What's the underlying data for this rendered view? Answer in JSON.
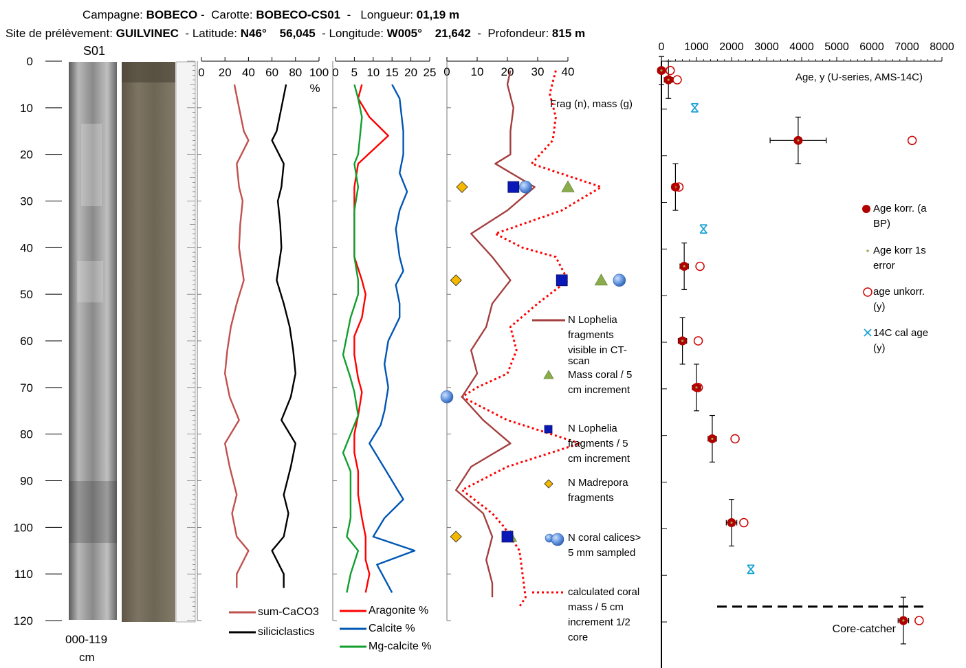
{
  "header": {
    "campagne_label": "Campagne:",
    "campagne": "BOBECO",
    "carotte_label": "Carotte:",
    "carotte": "BOBECO-CS01",
    "longueur_label": "Longueur:",
    "longueur": "01,19 m",
    "site_label": "Site de prélèvement:",
    "site": "GUILVINEC",
    "latitude_label": "Latitude:",
    "latitude_a": "N46°",
    "latitude_b": "56,045",
    "longitude_label": "Longitude:",
    "longitude_a": "W005°",
    "longitude_b": "21,642",
    "profondeur_label": "Profondeur:",
    "profondeur": "815 m"
  },
  "core": {
    "section_label": "S01",
    "range_label": "000-119",
    "range_unit": "cm"
  },
  "colors": {
    "sum_caco3": "#c0504d",
    "siliciclastics": "#000000",
    "aragonite": "#ff0000",
    "calcite": "#0056b3",
    "mg_calcite": "#119e2e",
    "lophelia_ct": "#a43f3f",
    "calc_mass": "#ff0000",
    "mass_coral": "#8aac4c",
    "n_lophelia": "#0a18b8",
    "madrepora": "#f5b800",
    "calices": "#4e86d8",
    "age_korr": "#b00000",
    "c14": "#1ba3d4"
  },
  "chart_data": [
    {
      "type": "line",
      "panel": "percent",
      "ylabel": "",
      "ylim": [
        0,
        120
      ],
      "yticks": [
        "0",
        "10",
        "20",
        "30",
        "40",
        "50",
        "60",
        "70",
        "80",
        "90",
        "100",
        "110",
        "120"
      ],
      "xlim": [
        0,
        100
      ],
      "xticks": [
        "0",
        "20",
        "40",
        "60",
        "80",
        "100"
      ],
      "xunit": "%",
      "series": [
        {
          "name": "sum-CaCO3",
          "points": [
            [
              28,
              5
            ],
            [
              32,
              10
            ],
            [
              36,
              15
            ],
            [
              40,
              17
            ],
            [
              30,
              22
            ],
            [
              32,
              27
            ],
            [
              35,
              30
            ],
            [
              33,
              35
            ],
            [
              32,
              40
            ],
            [
              36,
              47
            ],
            [
              30,
              52
            ],
            [
              25,
              57
            ],
            [
              22,
              62
            ],
            [
              20,
              67
            ],
            [
              24,
              72
            ],
            [
              32,
              77
            ],
            [
              20,
              82
            ],
            [
              24,
              87
            ],
            [
              30,
              93
            ],
            [
              26,
              97
            ],
            [
              30,
              102
            ],
            [
              40,
              105
            ],
            [
              30,
              110
            ],
            [
              30,
              113
            ]
          ]
        },
        {
          "name": "siliciclastics",
          "points": [
            [
              72,
              5
            ],
            [
              68,
              10
            ],
            [
              64,
              15
            ],
            [
              60,
              17
            ],
            [
              70,
              22
            ],
            [
              68,
              27
            ],
            [
              65,
              30
            ],
            [
              67,
              35
            ],
            [
              68,
              40
            ],
            [
              64,
              47
            ],
            [
              70,
              52
            ],
            [
              75,
              57
            ],
            [
              78,
              62
            ],
            [
              80,
              67
            ],
            [
              76,
              72
            ],
            [
              68,
              77
            ],
            [
              80,
              82
            ],
            [
              76,
              87
            ],
            [
              70,
              93
            ],
            [
              74,
              97
            ],
            [
              70,
              102
            ],
            [
              60,
              105
            ],
            [
              70,
              110
            ],
            [
              70,
              113
            ]
          ]
        }
      ]
    },
    {
      "type": "line",
      "panel": "mineralogy",
      "xlim": [
        0,
        25
      ],
      "xticks": [
        "0",
        "5",
        "10",
        "15",
        "20",
        "25"
      ],
      "series": [
        {
          "name": "Aragonite %",
          "points": [
            [
              7,
              5
            ],
            [
              6,
              8
            ],
            [
              9,
              12
            ],
            [
              14,
              16
            ],
            [
              6,
              22
            ],
            [
              5,
              27
            ],
            [
              5,
              32
            ],
            [
              5,
              37
            ],
            [
              5,
              42
            ],
            [
              7,
              47
            ],
            [
              8,
              50
            ],
            [
              7,
              55
            ],
            [
              5,
              59
            ],
            [
              5,
              63
            ],
            [
              6,
              68
            ],
            [
              7,
              71
            ],
            [
              6,
              76
            ],
            [
              5,
              80
            ],
            [
              5,
              84
            ],
            [
              6,
              88
            ],
            [
              6,
              93
            ],
            [
              7,
              98
            ],
            [
              8,
              102
            ],
            [
              8,
              107
            ],
            [
              9,
              110
            ],
            [
              8,
              114
            ]
          ]
        },
        {
          "name": "Calcite %",
          "points": [
            [
              15,
              5
            ],
            [
              17,
              8
            ],
            [
              18,
              15
            ],
            [
              18,
              20
            ],
            [
              17,
              24
            ],
            [
              19,
              28
            ],
            [
              17,
              32
            ],
            [
              16,
              36
            ],
            [
              17,
              42
            ],
            [
              18,
              45
            ],
            [
              16,
              48
            ],
            [
              17,
              52
            ],
            [
              17,
              55
            ],
            [
              14,
              60
            ],
            [
              13,
              65
            ],
            [
              14,
              70
            ],
            [
              13,
              75
            ],
            [
              12,
              78
            ],
            [
              9,
              82
            ],
            [
              12,
              86
            ],
            [
              15,
              90
            ],
            [
              18,
              94
            ],
            [
              13,
              98
            ],
            [
              10,
              102
            ],
            [
              21,
              105
            ],
            [
              11,
              108
            ],
            [
              15,
              114
            ]
          ]
        },
        {
          "name": "Mg-calcite %",
          "points": [
            [
              5,
              5
            ],
            [
              6,
              8
            ],
            [
              7,
              12
            ],
            [
              6,
              20
            ],
            [
              5,
              22
            ],
            [
              6,
              27
            ],
            [
              5,
              32
            ],
            [
              5,
              37
            ],
            [
              5,
              42
            ],
            [
              6,
              47
            ],
            [
              6,
              50
            ],
            [
              4,
              55
            ],
            [
              3,
              59
            ],
            [
              2,
              63
            ],
            [
              4,
              68
            ],
            [
              5,
              71
            ],
            [
              6,
              76
            ],
            [
              4,
              80
            ],
            [
              2,
              84
            ],
            [
              4,
              88
            ],
            [
              4,
              93
            ],
            [
              4,
              98
            ],
            [
              3,
              102
            ],
            [
              6,
              105
            ],
            [
              4,
              110
            ],
            [
              3,
              114
            ]
          ]
        }
      ]
    },
    {
      "type": "line",
      "panel": "fragments",
      "xlim": [
        0,
        40
      ],
      "xticks": [
        "0",
        "10",
        "20",
        "30",
        "40"
      ],
      "annotation": "Frag (n), mass (g)",
      "series": [
        {
          "name": "N Lophelia fragments visible in CT-scan",
          "points": [
            [
              21,
              2
            ],
            [
              20,
              5
            ],
            [
              22,
              10
            ],
            [
              21,
              15
            ],
            [
              21,
              20
            ],
            [
              16,
              22
            ],
            [
              29,
              27
            ],
            [
              20,
              32
            ],
            [
              8,
              37
            ],
            [
              15,
              42
            ],
            [
              21,
              47
            ],
            [
              15,
              52
            ],
            [
              13,
              57
            ],
            [
              8,
              62
            ],
            [
              10,
              67
            ],
            [
              5,
              72
            ],
            [
              12,
              77
            ],
            [
              21,
              82
            ],
            [
              8,
              87
            ],
            [
              3,
              92
            ],
            [
              12,
              97
            ],
            [
              15,
              102
            ],
            [
              13,
              107
            ],
            [
              15,
              112
            ],
            [
              15,
              115
            ]
          ]
        },
        {
          "name": "calculated coral mass / 5 cm increment 1/2 core",
          "dashed": true,
          "points": [
            [
              36,
              2
            ],
            [
              34,
              7
            ],
            [
              36,
              12
            ],
            [
              35,
              17
            ],
            [
              28,
              22
            ],
            [
              51,
              27
            ],
            [
              38,
              32
            ],
            [
              16,
              37
            ],
            [
              25,
              40
            ],
            [
              36,
              42
            ],
            [
              40,
              47
            ],
            [
              30,
              52
            ],
            [
              21,
              57
            ],
            [
              23,
              62
            ],
            [
              20,
              67
            ],
            [
              10,
              70
            ],
            [
              5,
              72
            ],
            [
              20,
              77
            ],
            [
              44,
              82
            ],
            [
              20,
              87
            ],
            [
              5,
              92
            ],
            [
              15,
              97
            ],
            [
              19,
              100
            ],
            [
              24,
              105
            ],
            [
              26,
              115
            ],
            [
              24,
              117
            ]
          ]
        }
      ],
      "markers": [
        {
          "name": "Mass coral / 5 cm increment",
          "shape": "triangle",
          "points": [
            [
              40,
              27
            ],
            [
              51,
              47
            ],
            [
              21,
              102
            ]
          ]
        },
        {
          "name": "N Lophelia fragments / 5 cm increment",
          "shape": "square",
          "points": [
            [
              22,
              27
            ],
            [
              38,
              47
            ],
            [
              20,
              102
            ]
          ]
        },
        {
          "name": "N Madrepora fragments",
          "shape": "diamond",
          "points": [
            [
              5,
              27
            ],
            [
              3,
              47
            ],
            [
              3,
              102
            ]
          ]
        },
        {
          "name": "N coral calices> 5 mm sampled",
          "shape": "circle",
          "points": [
            [
              26,
              27
            ],
            [
              57,
              47
            ],
            [
              0,
              72
            ]
          ]
        }
      ]
    },
    {
      "type": "scatter",
      "panel": "age",
      "xlabel": "Age, y (U-series, AMS-14C)",
      "xlim": [
        0,
        8000
      ],
      "xticks": [
        "0",
        "1000",
        "2000",
        "3000",
        "4000",
        "5000",
        "6000",
        "7000",
        "8000"
      ],
      "ylim": [
        0,
        120
      ],
      "series": [
        {
          "name": "Age korr. (a BP)",
          "points": [
            [
              0,
              2,
              100,
              3
            ],
            [
              200,
              4,
              120,
              4
            ],
            [
              3900,
              17,
              800,
              5
            ],
            [
              400,
              27,
              100,
              5
            ],
            [
              650,
              44,
              120,
              5
            ],
            [
              600,
              60,
              120,
              5
            ],
            [
              1000,
              70,
              120,
              5
            ],
            [
              1450,
              81,
              120,
              5
            ],
            [
              2000,
              99,
              150,
              5
            ],
            [
              6900,
              120,
              150,
              5
            ]
          ]
        },
        {
          "name": "Age korr 1s error",
          "points": []
        },
        {
          "name": "age unkorr. (y)",
          "points": [
            [
              250,
              2
            ],
            [
              450,
              4
            ],
            [
              7150,
              17
            ],
            [
              500,
              27
            ],
            [
              1100,
              44
            ],
            [
              1050,
              60
            ],
            [
              1050,
              70
            ],
            [
              2100,
              81
            ],
            [
              2350,
              99
            ],
            [
              7350,
              120
            ]
          ]
        },
        {
          "name": "14C cal age (y)",
          "points": [
            [
              950,
              10
            ],
            [
              1200,
              36
            ],
            [
              2550,
              109
            ]
          ]
        }
      ],
      "annotations": [
        "Core-catcher"
      ]
    }
  ],
  "legend_left": {
    "sum_caco3": "sum-CaCO3",
    "siliciclastics": "siliciclastics",
    "aragonite": "Aragonite %",
    "calcite": "Calcite %",
    "mg_calcite": "Mg-calcite %"
  },
  "legend_mid": {
    "lophelia_ct_1": "N Lophelia",
    "lophelia_ct_2": "fragments",
    "lophelia_ct_3": "visible in CT-",
    "lophelia_ct_4": "scan",
    "mass_1": "Mass coral / 5",
    "mass_2": "cm increment",
    "nloph_1": "N Lophelia",
    "nloph_2": "fragments / 5",
    "nloph_3": "cm increment",
    "madre_1": "N Madrepora",
    "madre_2": "fragments",
    "calices_1": "N coral calices>",
    "calices_2": "5 mm sampled",
    "calc_1": "calculated coral",
    "calc_2": "mass / 5 cm",
    "calc_3": "increment 1/2",
    "calc_4": "core"
  },
  "legend_age": {
    "korr_1": "Age korr. (a",
    "korr_2": "BP)",
    "err_1": "Age korr 1s",
    "err_2": "error",
    "unkorr_1": "age unkorr.",
    "unkorr_2": "(y)",
    "c14_1": "14C cal age",
    "c14_2": "(y)"
  }
}
